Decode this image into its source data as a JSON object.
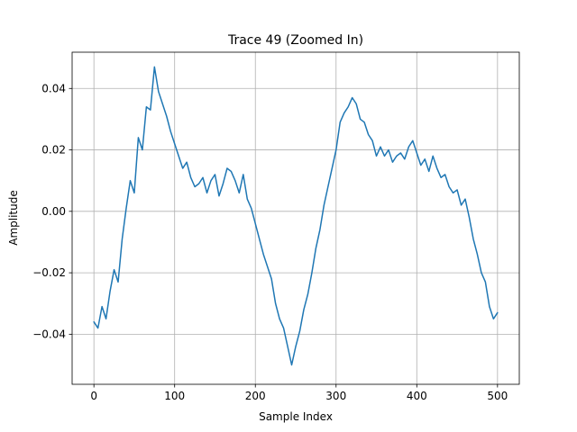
{
  "chart_data": {
    "type": "line",
    "title": "Trace 49 (Zoomed In)",
    "xlabel": "Sample Index",
    "ylabel": "Amplitude",
    "xlim": [
      -27,
      527
    ],
    "ylim": [
      -0.0563,
      0.0518
    ],
    "xticks": [
      0,
      100,
      200,
      300,
      400,
      500
    ],
    "yticks": [
      -0.04,
      -0.02,
      0.0,
      0.02,
      0.04
    ],
    "ytick_labels": [
      "−0.04",
      "−0.02",
      "0.00",
      "0.02",
      "0.04"
    ],
    "grid": true,
    "series": [
      {
        "color": "#1f77b4",
        "x": [
          0,
          5,
          10,
          15,
          20,
          25,
          30,
          35,
          40,
          45,
          50,
          55,
          60,
          65,
          70,
          75,
          80,
          85,
          90,
          95,
          100,
          105,
          110,
          115,
          120,
          125,
          130,
          135,
          140,
          145,
          150,
          155,
          160,
          165,
          170,
          175,
          180,
          185,
          190,
          195,
          200,
          205,
          210,
          215,
          220,
          225,
          230,
          235,
          240,
          245,
          250,
          255,
          260,
          265,
          270,
          275,
          280,
          285,
          290,
          295,
          300,
          305,
          310,
          315,
          320,
          325,
          330,
          335,
          340,
          345,
          350,
          355,
          360,
          365,
          370,
          375,
          380,
          385,
          390,
          395,
          400,
          405,
          410,
          415,
          420,
          425,
          430,
          435,
          440,
          445,
          450,
          455,
          460,
          465,
          470,
          475,
          480,
          485,
          490,
          495,
          500
        ],
        "y": [
          -0.036,
          -0.038,
          -0.031,
          -0.035,
          -0.026,
          -0.019,
          -0.023,
          -0.009,
          0.001,
          0.01,
          0.006,
          0.024,
          0.02,
          0.034,
          0.033,
          0.047,
          0.039,
          0.035,
          0.031,
          0.026,
          0.022,
          0.018,
          0.014,
          0.016,
          0.011,
          0.008,
          0.009,
          0.011,
          0.006,
          0.01,
          0.012,
          0.005,
          0.009,
          0.014,
          0.013,
          0.01,
          0.006,
          0.012,
          0.004,
          0.001,
          -0.004,
          -0.009,
          -0.014,
          -0.018,
          -0.022,
          -0.03,
          -0.035,
          -0.038,
          -0.044,
          -0.05,
          -0.044,
          -0.039,
          -0.032,
          -0.027,
          -0.02,
          -0.012,
          -0.006,
          0.002,
          0.008,
          0.014,
          0.02,
          0.029,
          0.032,
          0.034,
          0.037,
          0.035,
          0.03,
          0.029,
          0.025,
          0.023,
          0.018,
          0.021,
          0.018,
          0.02,
          0.016,
          0.018,
          0.019,
          0.017,
          0.021,
          0.023,
          0.019,
          0.015,
          0.017,
          0.013,
          0.018,
          0.014,
          0.011,
          0.012,
          0.008,
          0.006,
          0.007,
          0.002,
          0.004,
          -0.002,
          -0.009,
          -0.014,
          -0.02,
          -0.023,
          -0.031,
          -0.035,
          -0.033
        ]
      }
    ]
  }
}
